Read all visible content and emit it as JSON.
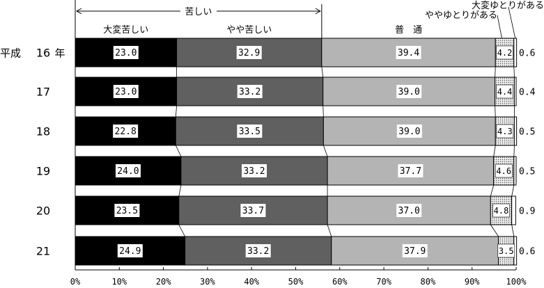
{
  "chart_data": {
    "type": "bar",
    "orientation": "horizontal",
    "stacked": true,
    "xlim": [
      0,
      100
    ],
    "x_ticks": [
      "0%",
      "10%",
      "20%",
      "30%",
      "40%",
      "50%",
      "60%",
      "70%",
      "80%",
      "90%",
      "100%"
    ],
    "group_label": "苦しい",
    "era_label": "平成",
    "year_suffix": "年",
    "categories": [
      "16",
      "17",
      "18",
      "19",
      "20",
      "21"
    ],
    "series": [
      {
        "name": "大変苦しい",
        "color": "#000000",
        "label_color": "#000000",
        "values": [
          23.0,
          23.0,
          22.8,
          24.0,
          23.5,
          24.9
        ]
      },
      {
        "name": "やや苦しい",
        "color": "#606060",
        "label_color": "#000000",
        "values": [
          32.9,
          33.2,
          33.5,
          33.2,
          33.7,
          33.2
        ]
      },
      {
        "name": "普　通",
        "color": "#b4b4b4",
        "label_color": "#000000",
        "values": [
          39.4,
          39.0,
          39.0,
          37.7,
          37.0,
          37.9
        ]
      },
      {
        "name": "ややゆとりがある",
        "color": "#e2e2e2",
        "pattern": "dots",
        "values": [
          4.2,
          4.4,
          4.3,
          4.6,
          4.8,
          3.5
        ]
      },
      {
        "name": "大変ゆとりがある",
        "color": "#ffffff",
        "values": [
          0.6,
          0.4,
          0.5,
          0.5,
          0.9,
          0.6
        ]
      }
    ],
    "grid": false,
    "legend": "top"
  }
}
